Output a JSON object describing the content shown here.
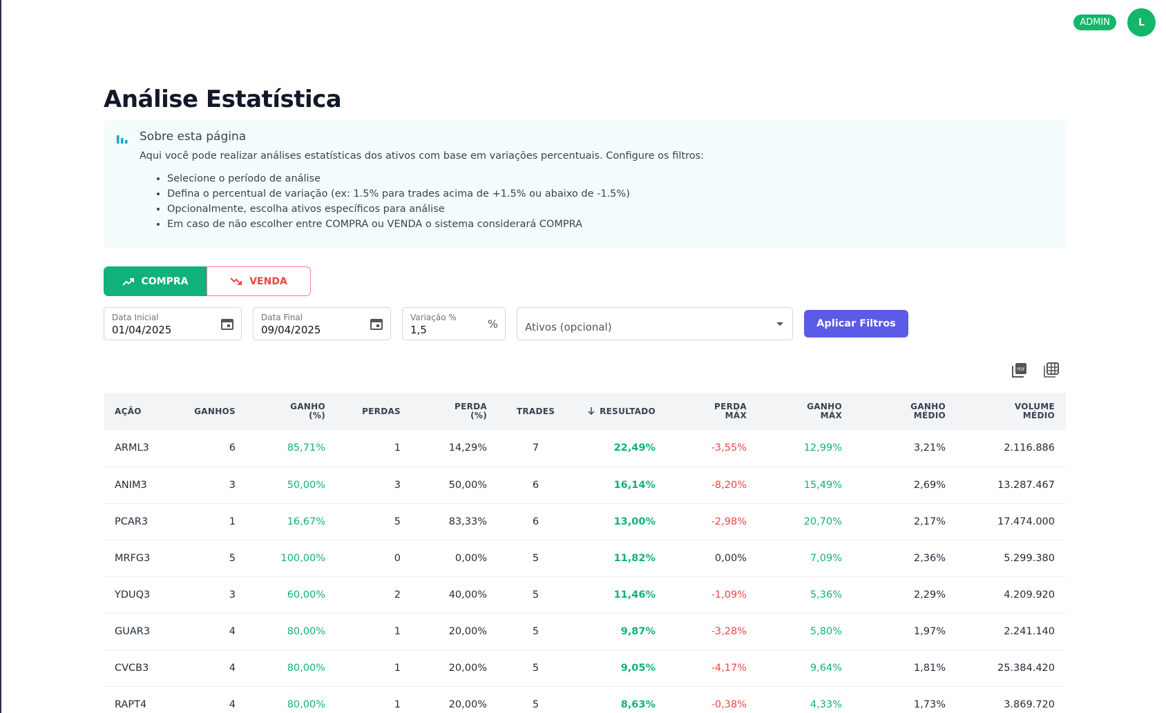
{
  "header": {
    "badge": "ADMIN",
    "avatar": "L"
  },
  "title": "Análise Estatística",
  "info": {
    "title": "Sobre esta página",
    "text": "Aqui você pode realizar análises estatísticas dos ativos com base em variações percentuais. Configure os filtros:",
    "items": [
      "Selecione o período de análise",
      "Defina o percentual de variação (ex: 1.5% para trades acima de +1.5% ou abaixo de -1.5%)",
      "Opcionalmente, escolha ativos específicos para análise",
      "Em caso de não escolher entre COMPRA ou VENDA o sistema considerará COMPRA"
    ]
  },
  "toggle": {
    "buy": "COMPRA",
    "sell": "VENDA"
  },
  "filters": {
    "start": {
      "label": "Data Inicial",
      "value": "01/04/2025"
    },
    "end": {
      "label": "Data Final",
      "value": "09/04/2025"
    },
    "variation": {
      "label": "Variação %",
      "value": "1,5",
      "suffix": "%"
    },
    "assets": {
      "placeholder": "Ativos (opcional)"
    },
    "apply": "Aplicar Filtros"
  },
  "table": {
    "columns": [
      "AÇÃO",
      "GANHOS",
      "GANHO (%)",
      "PERDAS",
      "PERDA (%)",
      "TRADES",
      "RESULTADO",
      "PERDA MÁX",
      "GANHO MÁX",
      "GANHO MÉDIO",
      "VOLUME MÉDIO"
    ],
    "rows": [
      [
        "ARML3",
        "6",
        "85,71%",
        "1",
        "14,29%",
        "7",
        "22,49%",
        "-3,55%",
        "12,99%",
        "3,21%",
        "2.116.886"
      ],
      [
        "ANIM3",
        "3",
        "50,00%",
        "3",
        "50,00%",
        "6",
        "16,14%",
        "-8,20%",
        "15,49%",
        "2,69%",
        "13.287.467"
      ],
      [
        "PCAR3",
        "1",
        "16,67%",
        "5",
        "83,33%",
        "6",
        "13,00%",
        "-2,98%",
        "20,70%",
        "2,17%",
        "17.474.000"
      ],
      [
        "MRFG3",
        "5",
        "100,00%",
        "0",
        "0,00%",
        "5",
        "11,82%",
        "0,00%",
        "7,09%",
        "2,36%",
        "5.299.380"
      ],
      [
        "YDUQ3",
        "3",
        "60,00%",
        "2",
        "40,00%",
        "5",
        "11,46%",
        "-1,09%",
        "5,36%",
        "2,29%",
        "4.209.920"
      ],
      [
        "GUAR3",
        "4",
        "80,00%",
        "1",
        "20,00%",
        "5",
        "9,87%",
        "-3,28%",
        "5,80%",
        "1,97%",
        "2.241.140"
      ],
      [
        "CVCB3",
        "4",
        "80,00%",
        "1",
        "20,00%",
        "5",
        "9,05%",
        "-4,17%",
        "9,64%",
        "1,81%",
        "25.384.420"
      ],
      [
        "RAPT4",
        "4",
        "80,00%",
        "1",
        "20,00%",
        "5",
        "8,63%",
        "-0,38%",
        "4,33%",
        "1,73%",
        "3.869.720"
      ]
    ]
  }
}
